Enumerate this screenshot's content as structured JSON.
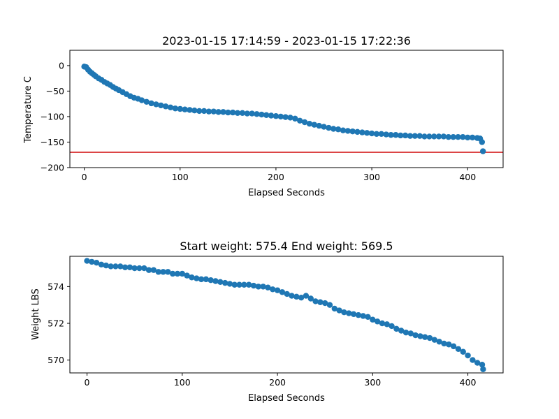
{
  "chart_data": [
    {
      "type": "scatter",
      "title": "2023-01-15 17:14:59 - 2023-01-15 17:22:36",
      "xlabel": "Elapsed Seconds",
      "ylabel": "Temperature C",
      "xlim": [
        -15,
        437
      ],
      "ylim": [
        -200,
        30
      ],
      "xticks": [
        0,
        100,
        200,
        300,
        400
      ],
      "yticks": [
        0,
        -50,
        -100,
        -150,
        -200
      ],
      "grid": false,
      "color": "#1f77b4",
      "reference_line": {
        "y": -170,
        "color": "#d62728"
      },
      "series": [
        {
          "x": [
            0,
            2,
            4,
            6,
            8,
            10,
            12,
            15,
            18,
            21,
            24,
            27,
            30,
            33,
            36,
            40,
            44,
            48,
            52,
            56,
            60,
            65,
            70,
            75,
            80,
            85,
            90,
            95,
            100,
            105,
            110,
            115,
            120,
            125,
            130,
            135,
            140,
            145,
            150,
            155,
            160,
            165,
            170,
            175,
            180,
            185,
            190,
            195,
            200,
            205,
            210,
            215,
            220,
            225,
            230,
            235,
            240,
            245,
            250,
            255,
            260,
            265,
            270,
            275,
            280,
            285,
            290,
            295,
            300,
            305,
            310,
            315,
            320,
            325,
            330,
            335,
            340,
            345,
            350,
            355,
            360,
            365,
            370,
            375,
            380,
            385,
            390,
            395,
            400,
            405,
            410,
            413,
            415,
            416
          ],
          "y": [
            -2,
            -3,
            -8,
            -12,
            -15,
            -18,
            -21,
            -25,
            -28,
            -32,
            -35,
            -38,
            -42,
            -45,
            -48,
            -52,
            -56,
            -60,
            -63,
            -65,
            -68,
            -71,
            -74,
            -76,
            -78,
            -80,
            -82,
            -84,
            -85,
            -86,
            -87,
            -88,
            -89,
            -89,
            -90,
            -90,
            -91,
            -91,
            -92,
            -92,
            -93,
            -93,
            -94,
            -94,
            -95,
            -96,
            -97,
            -98,
            -99,
            -100,
            -101,
            -102,
            -104,
            -108,
            -111,
            -114,
            -116,
            -118,
            -120,
            -122,
            -124,
            -125,
            -127,
            -128,
            -129,
            -130,
            -131,
            -132,
            -133,
            -134,
            -134,
            -135,
            -136,
            -136,
            -137,
            -137,
            -138,
            -138,
            -138,
            -139,
            -139,
            -139,
            -139,
            -139,
            -140,
            -140,
            -140,
            -140,
            -141,
            -141,
            -142,
            -143,
            -150,
            -168
          ]
        }
      ]
    },
    {
      "type": "scatter",
      "title": "Start weight: 575.4 End weight: 569.5",
      "xlabel": "Elapsed Seconds",
      "ylabel": "Weight LBS",
      "xlim": [
        -18,
        437
      ],
      "ylim": [
        569.3,
        575.65
      ],
      "xticks": [
        0,
        100,
        200,
        300,
        400
      ],
      "yticks": [
        570,
        572,
        574
      ],
      "grid": false,
      "color": "#1f77b4",
      "series": [
        {
          "x": [
            0,
            5,
            10,
            15,
            20,
            25,
            30,
            35,
            40,
            45,
            50,
            55,
            60,
            65,
            70,
            75,
            80,
            85,
            90,
            95,
            100,
            105,
            110,
            115,
            120,
            125,
            130,
            135,
            140,
            145,
            150,
            155,
            160,
            165,
            170,
            175,
            180,
            185,
            190,
            195,
            200,
            205,
            210,
            215,
            220,
            225,
            230,
            235,
            240,
            245,
            250,
            255,
            260,
            265,
            270,
            275,
            280,
            285,
            290,
            295,
            300,
            305,
            310,
            315,
            320,
            325,
            330,
            335,
            340,
            345,
            350,
            355,
            360,
            365,
            370,
            375,
            380,
            385,
            390,
            395,
            400,
            405,
            410,
            415,
            416
          ],
          "y": [
            575.4,
            575.35,
            575.3,
            575.2,
            575.15,
            575.1,
            575.1,
            575.1,
            575.05,
            575.05,
            575.0,
            575.0,
            575.0,
            574.9,
            574.9,
            574.8,
            574.8,
            574.8,
            574.7,
            574.7,
            574.7,
            574.6,
            574.5,
            574.45,
            574.4,
            574.4,
            574.35,
            574.3,
            574.25,
            574.2,
            574.15,
            574.1,
            574.1,
            574.1,
            574.1,
            574.05,
            574.0,
            574.0,
            573.95,
            573.85,
            573.8,
            573.7,
            573.6,
            573.5,
            573.45,
            573.4,
            573.5,
            573.35,
            573.2,
            573.15,
            573.1,
            573.0,
            572.8,
            572.7,
            572.6,
            572.55,
            572.5,
            572.45,
            572.4,
            572.35,
            572.2,
            572.1,
            572.0,
            571.95,
            571.85,
            571.7,
            571.6,
            571.5,
            571.45,
            571.35,
            571.3,
            571.25,
            571.2,
            571.1,
            571.0,
            570.9,
            570.85,
            570.75,
            570.6,
            570.45,
            570.25,
            570.0,
            569.85,
            569.75,
            569.5
          ]
        }
      ]
    }
  ]
}
